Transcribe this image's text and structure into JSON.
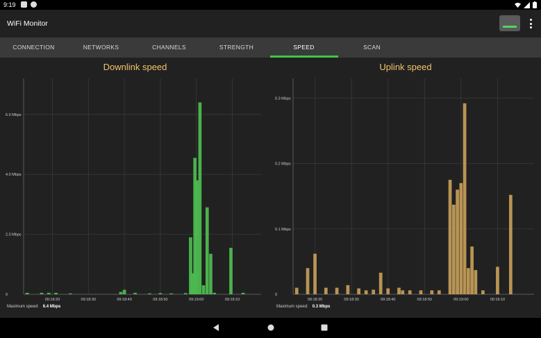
{
  "status_bar": {
    "time": "9:19"
  },
  "app": {
    "title": "WiFi Monitor"
  },
  "tabs": [
    {
      "label": "CONNECTION",
      "active": false
    },
    {
      "label": "NETWORKS",
      "active": false
    },
    {
      "label": "CHANNELS",
      "active": false
    },
    {
      "label": "STRENGTH",
      "active": false
    },
    {
      "label": "SPEED",
      "active": true
    },
    {
      "label": "SCAN",
      "active": false
    }
  ],
  "colors": {
    "accent": "#3fc64a",
    "downlink": "#4fc152",
    "uplink": "#c9a15a",
    "title": "#f2c46a"
  },
  "downlink": {
    "max_label": "Maximum speed:",
    "max_value": "6.4 Mbps",
    "chart_data": {
      "type": "bar",
      "title": "Downlink speed",
      "y_unit": "Mbps",
      "ylim": [
        0,
        7.2
      ],
      "yticks": [
        {
          "value": 0,
          "label": "0"
        },
        {
          "value": 2,
          "label": "2.0 Mbps"
        },
        {
          "value": 4,
          "label": "4.0 Mbps"
        },
        {
          "value": 6,
          "label": "6.0 Mbps"
        }
      ],
      "xlim": [
        6,
        39
      ],
      "xticks": [
        {
          "value": 10,
          "label": "09:18:20"
        },
        {
          "value": 15,
          "label": "09:18:30"
        },
        {
          "value": 20,
          "label": "09:18:40"
        },
        {
          "value": 25,
          "label": "09:18:50"
        },
        {
          "value": 30,
          "label": "09:19:00"
        },
        {
          "value": 35,
          "label": "09:19:10"
        }
      ],
      "x": [
        6.5,
        8.5,
        9.5,
        10.5,
        12.5,
        19.5,
        20,
        21.5,
        23.5,
        25,
        26.5,
        28.5,
        29.2,
        29.5,
        29.8,
        30.1,
        30.5,
        31,
        31.5,
        32,
        32.5,
        34.8,
        36.5
      ],
      "values": [
        0.05,
        0.05,
        0.05,
        0.05,
        0.03,
        0.08,
        0.15,
        0.05,
        0.03,
        0.04,
        0.03,
        0.04,
        1.9,
        0.7,
        4.55,
        3.8,
        6.4,
        0.3,
        2.9,
        1.35,
        0.05,
        1.55,
        0.05
      ]
    }
  },
  "uplink": {
    "max_label": "Maximum speed:",
    "max_value": "0.3 Mbps",
    "chart_data": {
      "type": "bar",
      "title": "Uplink speed",
      "y_unit": "Mbps",
      "ylim": [
        0,
        0.33
      ],
      "yticks": [
        {
          "value": 0,
          "label": "0"
        },
        {
          "value": 0.1,
          "label": "0.1 Mbps"
        },
        {
          "value": 0.2,
          "label": "0.2 Mbps"
        },
        {
          "value": 0.3,
          "label": "0.3 Mbps"
        }
      ],
      "xlim": [
        6,
        39
      ],
      "xticks": [
        {
          "value": 9,
          "label": "09:18:20"
        },
        {
          "value": 14,
          "label": "09:18:30"
        },
        {
          "value": 19,
          "label": "09:18:40"
        },
        {
          "value": 24,
          "label": "09:18:50"
        },
        {
          "value": 29,
          "label": "09:19:00"
        },
        {
          "value": 34,
          "label": "09:19:10"
        }
      ],
      "x": [
        6.5,
        8,
        9,
        10.5,
        12,
        13.5,
        15,
        16,
        17,
        18,
        19,
        20.5,
        21,
        22,
        23.5,
        25,
        26,
        27.5,
        28,
        28.5,
        29,
        29.5,
        30,
        30.5,
        31,
        32,
        34,
        35.8
      ],
      "values": [
        0.01,
        0.04,
        0.062,
        0.01,
        0.01,
        0.014,
        0.009,
        0.006,
        0.007,
        0.033,
        0.009,
        0.01,
        0.006,
        0.006,
        0.006,
        0.006,
        0.006,
        0.175,
        0.137,
        0.16,
        0.17,
        0.292,
        0.04,
        0.073,
        0.037,
        0.006,
        0.042,
        0.152
      ]
    }
  },
  "nav": {
    "back": "back",
    "home": "home",
    "recents": "recents"
  }
}
